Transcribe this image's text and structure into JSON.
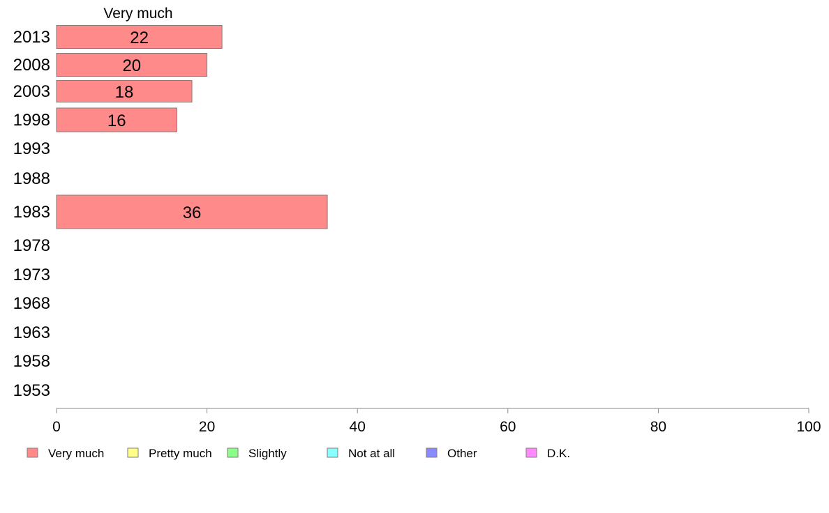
{
  "chart_data": {
    "type": "bar",
    "orientation": "horizontal",
    "stacked": true,
    "categories": [
      "2013",
      "2008",
      "2003",
      "1998",
      "1993",
      "1988",
      "1983",
      "1978",
      "1973",
      "1968",
      "1963",
      "1958",
      "1953"
    ],
    "series": [
      {
        "name": "Very much",
        "color": "#ff8a8a",
        "values": [
          22,
          20,
          18,
          16,
          null,
          null,
          36,
          null,
          null,
          null,
          null,
          null,
          null
        ]
      },
      {
        "name": "Pretty much",
        "color": "#ffff8a",
        "values": [
          null,
          null,
          null,
          null,
          null,
          null,
          null,
          null,
          null,
          null,
          null,
          null,
          null
        ]
      },
      {
        "name": "Slightly",
        "color": "#8aff8a",
        "values": [
          null,
          null,
          null,
          null,
          null,
          null,
          null,
          null,
          null,
          null,
          null,
          null,
          null
        ]
      },
      {
        "name": "Not at all",
        "color": "#8affff",
        "values": [
          null,
          null,
          null,
          null,
          null,
          null,
          null,
          null,
          null,
          null,
          null,
          null,
          null
        ]
      },
      {
        "name": "Other",
        "color": "#8a8aff",
        "values": [
          null,
          null,
          null,
          null,
          null,
          null,
          null,
          null,
          null,
          null,
          null,
          null,
          null
        ]
      },
      {
        "name": "D.K.",
        "color": "#ff8aff",
        "values": [
          null,
          null,
          null,
          null,
          null,
          null,
          null,
          null,
          null,
          null,
          null,
          null,
          null
        ]
      }
    ],
    "series_header": "Very much",
    "xlim": [
      0,
      100
    ],
    "xticks": [
      0,
      20,
      40,
      60,
      80,
      100
    ],
    "grid": false,
    "legend_position": "bottom"
  }
}
